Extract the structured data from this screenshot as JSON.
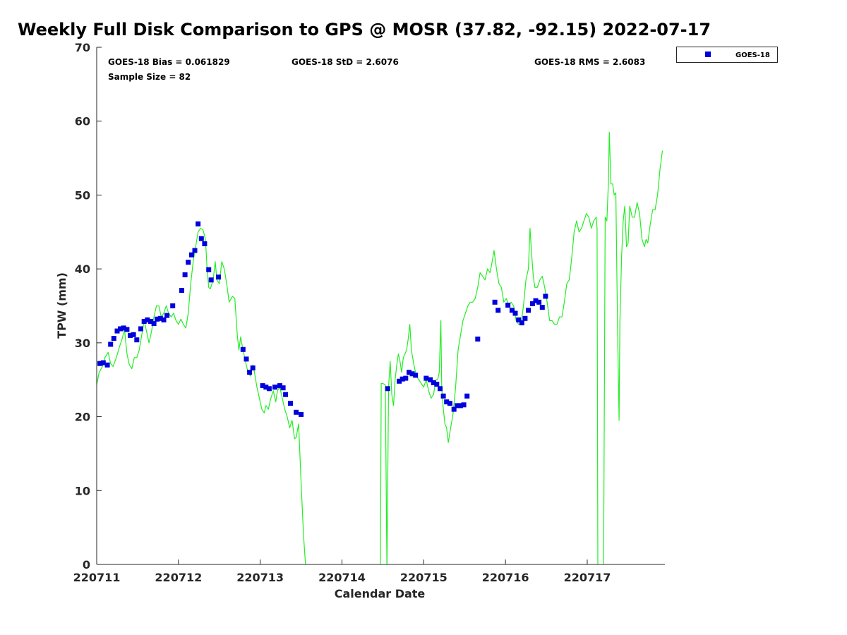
{
  "chart_data": {
    "type": "scatter",
    "title": "Weekly Full Disk Comparison to GPS @ MOSR (37.82, -92.15) 2022-07-17",
    "xlabel": "Calendar Date",
    "ylabel": "TPW (mm)",
    "xlim": [
      0,
      6.95
    ],
    "ylim": [
      0,
      70
    ],
    "x_ticks": [
      0,
      1,
      2,
      3,
      4,
      5,
      6
    ],
    "x_tick_labels": [
      "220711",
      "220712",
      "220713",
      "220714",
      "220715",
      "220716",
      "220717"
    ],
    "y_ticks": [
      0,
      10,
      20,
      30,
      40,
      50,
      60,
      70
    ],
    "y_tick_labels": [
      "0",
      "10",
      "20",
      "30",
      "40",
      "50",
      "60",
      "70"
    ],
    "stats": {
      "bias": "GOES-18 Bias = 0.061829",
      "std": "GOES-18 StD = 2.6076",
      "rms": "GOES-18 RMS = 2.6083",
      "sample": "Sample Size = 82"
    },
    "legend": {
      "location": "top-right, outside plot",
      "entries": [
        "GOES-18"
      ]
    },
    "colors": {
      "gps_line": "#22ee22",
      "goes_marker": "#0000dd"
    },
    "series": [
      {
        "name": "GPS",
        "type": "line",
        "points": [
          [
            0.0,
            24.3
          ],
          [
            0.03,
            26.0
          ],
          [
            0.07,
            26.8
          ],
          [
            0.1,
            28.0
          ],
          [
            0.14,
            28.7
          ],
          [
            0.17,
            27.2
          ],
          [
            0.2,
            26.8
          ],
          [
            0.24,
            28.0
          ],
          [
            0.28,
            29.5
          ],
          [
            0.31,
            30.5
          ],
          [
            0.34,
            31.8
          ],
          [
            0.37,
            28.5
          ],
          [
            0.4,
            27.0
          ],
          [
            0.43,
            26.5
          ],
          [
            0.46,
            28.0
          ],
          [
            0.49,
            28.0
          ],
          [
            0.52,
            29.0
          ],
          [
            0.55,
            31.0
          ],
          [
            0.58,
            33.0
          ],
          [
            0.61,
            31.5
          ],
          [
            0.64,
            30.0
          ],
          [
            0.67,
            31.5
          ],
          [
            0.7,
            33.5
          ],
          [
            0.73,
            35.0
          ],
          [
            0.76,
            35.0
          ],
          [
            0.79,
            33.5
          ],
          [
            0.82,
            34.0
          ],
          [
            0.85,
            35.0
          ],
          [
            0.88,
            34.0
          ],
          [
            0.91,
            33.5
          ],
          [
            0.94,
            34.0
          ],
          [
            0.97,
            33.0
          ],
          [
            1.0,
            32.5
          ],
          [
            1.03,
            33.2
          ],
          [
            1.06,
            32.5
          ],
          [
            1.09,
            32.0
          ],
          [
            1.12,
            34.0
          ],
          [
            1.15,
            38.0
          ],
          [
            1.18,
            41.0
          ],
          [
            1.21,
            43.0
          ],
          [
            1.24,
            45.0
          ],
          [
            1.27,
            45.5
          ],
          [
            1.3,
            45.3
          ],
          [
            1.33,
            44.0
          ],
          [
            1.35,
            40.0
          ],
          [
            1.37,
            37.5
          ],
          [
            1.39,
            37.3
          ],
          [
            1.41,
            38.0
          ],
          [
            1.43,
            39.0
          ],
          [
            1.45,
            41.0
          ],
          [
            1.47,
            38.5
          ],
          [
            1.5,
            38.0
          ],
          [
            1.53,
            41.0
          ],
          [
            1.56,
            40.0
          ],
          [
            1.59,
            38.0
          ],
          [
            1.62,
            35.5
          ],
          [
            1.66,
            36.3
          ],
          [
            1.69,
            36.0
          ],
          [
            1.72,
            31.0
          ],
          [
            1.74,
            29.0
          ],
          [
            1.76,
            30.8
          ],
          [
            1.79,
            29.0
          ],
          [
            1.82,
            27.5
          ],
          [
            1.85,
            26.0
          ],
          [
            1.88,
            25.5
          ],
          [
            1.91,
            27.0
          ],
          [
            1.93,
            26.0
          ],
          [
            1.96,
            24.0
          ],
          [
            1.99,
            22.5
          ],
          [
            2.02,
            21.0
          ],
          [
            2.05,
            20.5
          ],
          [
            2.07,
            21.5
          ],
          [
            2.1,
            21.0
          ],
          [
            2.13,
            22.5
          ],
          [
            2.16,
            23.5
          ],
          [
            2.19,
            22.0
          ],
          [
            2.21,
            23.5
          ],
          [
            2.24,
            24.0
          ],
          [
            2.27,
            22.5
          ],
          [
            2.3,
            21.0
          ],
          [
            2.33,
            20.0
          ],
          [
            2.36,
            18.5
          ],
          [
            2.39,
            19.5
          ],
          [
            2.42,
            17.0
          ],
          [
            2.44,
            17.2
          ],
          [
            2.47,
            19.0
          ],
          [
            2.5,
            11.0
          ],
          [
            2.53,
            4.0
          ],
          [
            2.56,
            -1.0
          ],
          null,
          [
            3.47,
            -1.0
          ],
          [
            3.48,
            24.5
          ],
          [
            3.5,
            24.5
          ],
          [
            3.53,
            24.3
          ],
          [
            3.55,
            -1.0
          ],
          [
            3.57,
            24.0
          ],
          [
            3.59,
            27.5
          ],
          [
            3.61,
            23.0
          ],
          [
            3.63,
            21.5
          ],
          [
            3.65,
            25.0
          ],
          [
            3.67,
            27.0
          ],
          [
            3.69,
            28.5
          ],
          [
            3.71,
            27.5
          ],
          [
            3.73,
            26.0
          ],
          [
            3.75,
            28.0
          ],
          [
            3.77,
            28.5
          ],
          [
            3.79,
            29.0
          ],
          [
            3.81,
            30.5
          ],
          [
            3.83,
            32.5
          ],
          [
            3.85,
            29.0
          ],
          [
            3.88,
            27.0
          ],
          [
            3.91,
            25.5
          ],
          [
            3.94,
            25.0
          ],
          [
            3.97,
            24.5
          ],
          [
            4.0,
            24.0
          ],
          [
            4.03,
            25.0
          ],
          [
            4.06,
            23.5
          ],
          [
            4.09,
            22.5
          ],
          [
            4.12,
            23.0
          ],
          [
            4.15,
            25.0
          ],
          [
            4.17,
            25.0
          ],
          [
            4.19,
            26.0
          ],
          [
            4.21,
            33.0
          ],
          [
            4.22,
            24.0
          ],
          [
            4.24,
            21.0
          ],
          [
            4.26,
            19.0
          ],
          [
            4.28,
            18.5
          ],
          [
            4.3,
            16.5
          ],
          [
            4.33,
            18.5
          ],
          [
            4.36,
            20.5
          ],
          [
            4.39,
            24.0
          ],
          [
            4.42,
            29.0
          ],
          [
            4.45,
            31.0
          ],
          [
            4.48,
            33.0
          ],
          [
            4.51,
            34.0
          ],
          [
            4.54,
            35.0
          ],
          [
            4.57,
            35.5
          ],
          [
            4.6,
            35.5
          ],
          [
            4.63,
            36.0
          ],
          [
            4.66,
            37.5
          ],
          [
            4.69,
            39.5
          ],
          [
            4.72,
            39.0
          ],
          [
            4.75,
            38.5
          ],
          [
            4.78,
            40.0
          ],
          [
            4.81,
            39.5
          ],
          [
            4.83,
            40.5
          ],
          [
            4.86,
            42.5
          ],
          [
            4.89,
            40.0
          ],
          [
            4.92,
            38.0
          ],
          [
            4.95,
            37.5
          ],
          [
            4.98,
            35.5
          ],
          [
            5.01,
            36.0
          ],
          [
            5.04,
            35.0
          ],
          [
            5.07,
            35.5
          ],
          [
            5.1,
            35.0
          ],
          [
            5.13,
            33.0
          ],
          [
            5.16,
            32.5
          ],
          [
            5.19,
            32.5
          ],
          [
            5.22,
            35.0
          ],
          [
            5.25,
            38.5
          ],
          [
            5.28,
            40.0
          ],
          [
            5.3,
            45.5
          ],
          [
            5.32,
            42.0
          ],
          [
            5.34,
            39.0
          ],
          [
            5.36,
            37.5
          ],
          [
            5.39,
            37.5
          ],
          [
            5.42,
            38.5
          ],
          [
            5.45,
            39.0
          ],
          [
            5.48,
            37.5
          ],
          [
            5.51,
            35.5
          ],
          [
            5.54,
            33.0
          ],
          [
            5.57,
            33.0
          ],
          [
            5.6,
            32.5
          ],
          [
            5.63,
            32.5
          ],
          [
            5.66,
            33.5
          ],
          [
            5.69,
            33.5
          ],
          [
            5.72,
            35.5
          ],
          [
            5.75,
            38.0
          ],
          [
            5.78,
            38.5
          ],
          [
            5.81,
            41.5
          ],
          [
            5.84,
            45.0
          ],
          [
            5.87,
            46.5
          ],
          [
            5.9,
            45.0
          ],
          [
            5.93,
            45.5
          ],
          [
            5.96,
            46.5
          ],
          [
            5.99,
            47.5
          ],
          [
            6.02,
            47.0
          ],
          [
            6.05,
            45.5
          ],
          [
            6.08,
            46.5
          ],
          [
            6.11,
            47.0
          ],
          [
            6.12,
            45.5
          ],
          [
            6.13,
            -1.0
          ],
          null,
          [
            6.2,
            -1.0
          ],
          [
            6.22,
            47.0
          ],
          [
            6.24,
            46.5
          ],
          [
            6.26,
            52.0
          ],
          [
            6.27,
            58.5
          ],
          [
            6.29,
            51.5
          ],
          [
            6.31,
            51.5
          ],
          [
            6.33,
            50.0
          ],
          [
            6.35,
            50.3
          ],
          [
            6.37,
            33.0
          ],
          [
            6.39,
            19.5
          ],
          [
            6.4,
            33.0
          ],
          [
            6.42,
            41.5
          ],
          [
            6.44,
            46.5
          ],
          [
            6.46,
            48.5
          ],
          [
            6.48,
            43.0
          ],
          [
            6.5,
            43.5
          ],
          [
            6.52,
            48.5
          ],
          [
            6.55,
            47.0
          ],
          [
            6.58,
            47.0
          ],
          [
            6.61,
            49.0
          ],
          [
            6.64,
            47.5
          ],
          [
            6.67,
            44.0
          ],
          [
            6.7,
            43.0
          ],
          [
            6.72,
            44.0
          ],
          [
            6.74,
            43.5
          ],
          [
            6.77,
            46.0
          ],
          [
            6.8,
            48.0
          ],
          [
            6.83,
            48.0
          ],
          [
            6.86,
            50.0
          ],
          [
            6.89,
            53.5
          ],
          [
            6.92,
            56.0
          ]
        ]
      },
      {
        "name": "GOES-18",
        "type": "scatter",
        "points": [
          [
            0.04,
            27.2
          ],
          [
            0.08,
            27.3
          ],
          [
            0.13,
            27.0
          ],
          [
            0.17,
            29.8
          ],
          [
            0.21,
            30.6
          ],
          [
            0.25,
            31.6
          ],
          [
            0.29,
            31.9
          ],
          [
            0.33,
            32.0
          ],
          [
            0.37,
            31.8
          ],
          [
            0.41,
            31.0
          ],
          [
            0.45,
            31.1
          ],
          [
            0.49,
            30.4
          ],
          [
            0.54,
            31.9
          ],
          [
            0.58,
            32.9
          ],
          [
            0.62,
            33.1
          ],
          [
            0.66,
            32.9
          ],
          [
            0.7,
            32.6
          ],
          [
            0.74,
            33.2
          ],
          [
            0.78,
            33.3
          ],
          [
            0.82,
            33.1
          ],
          [
            0.86,
            33.7
          ],
          [
            0.93,
            35.0
          ],
          [
            1.04,
            37.1
          ],
          [
            1.08,
            39.2
          ],
          [
            1.12,
            40.9
          ],
          [
            1.16,
            41.9
          ],
          [
            1.2,
            42.5
          ],
          [
            1.24,
            46.1
          ],
          [
            1.28,
            44.1
          ],
          [
            1.32,
            43.4
          ],
          [
            1.37,
            39.9
          ],
          [
            1.4,
            38.5
          ],
          [
            1.49,
            38.9
          ],
          [
            1.79,
            29.1
          ],
          [
            1.83,
            27.8
          ],
          [
            1.87,
            26.0
          ],
          [
            1.91,
            26.6
          ],
          [
            2.03,
            24.2
          ],
          [
            2.07,
            24.0
          ],
          [
            2.11,
            23.8
          ],
          [
            2.18,
            24.0
          ],
          [
            2.24,
            24.2
          ],
          [
            2.28,
            23.9
          ],
          [
            2.31,
            23.0
          ],
          [
            2.37,
            21.8
          ],
          [
            2.44,
            20.6
          ],
          [
            2.5,
            20.3
          ],
          [
            3.56,
            23.8
          ],
          [
            3.7,
            24.8
          ],
          [
            3.74,
            25.1
          ],
          [
            3.78,
            25.2
          ],
          [
            3.82,
            26.0
          ],
          [
            3.86,
            25.8
          ],
          [
            3.9,
            25.6
          ],
          [
            4.03,
            25.2
          ],
          [
            4.08,
            25.0
          ],
          [
            4.12,
            24.6
          ],
          [
            4.16,
            24.4
          ],
          [
            4.2,
            23.8
          ],
          [
            4.24,
            22.8
          ],
          [
            4.28,
            22.0
          ],
          [
            4.32,
            21.8
          ],
          [
            4.37,
            21.0
          ],
          [
            4.41,
            21.5
          ],
          [
            4.45,
            21.5
          ],
          [
            4.49,
            21.6
          ],
          [
            4.53,
            22.8
          ],
          [
            4.66,
            30.5
          ],
          [
            4.87,
            35.5
          ],
          [
            4.91,
            34.4
          ],
          [
            5.03,
            35.1
          ],
          [
            5.08,
            34.4
          ],
          [
            5.12,
            34.0
          ],
          [
            5.16,
            33.1
          ],
          [
            5.2,
            32.7
          ],
          [
            5.24,
            33.3
          ],
          [
            5.28,
            34.4
          ],
          [
            5.33,
            35.3
          ],
          [
            5.37,
            35.7
          ],
          [
            5.41,
            35.5
          ],
          [
            5.45,
            34.8
          ],
          [
            5.49,
            36.3
          ]
        ]
      }
    ]
  }
}
